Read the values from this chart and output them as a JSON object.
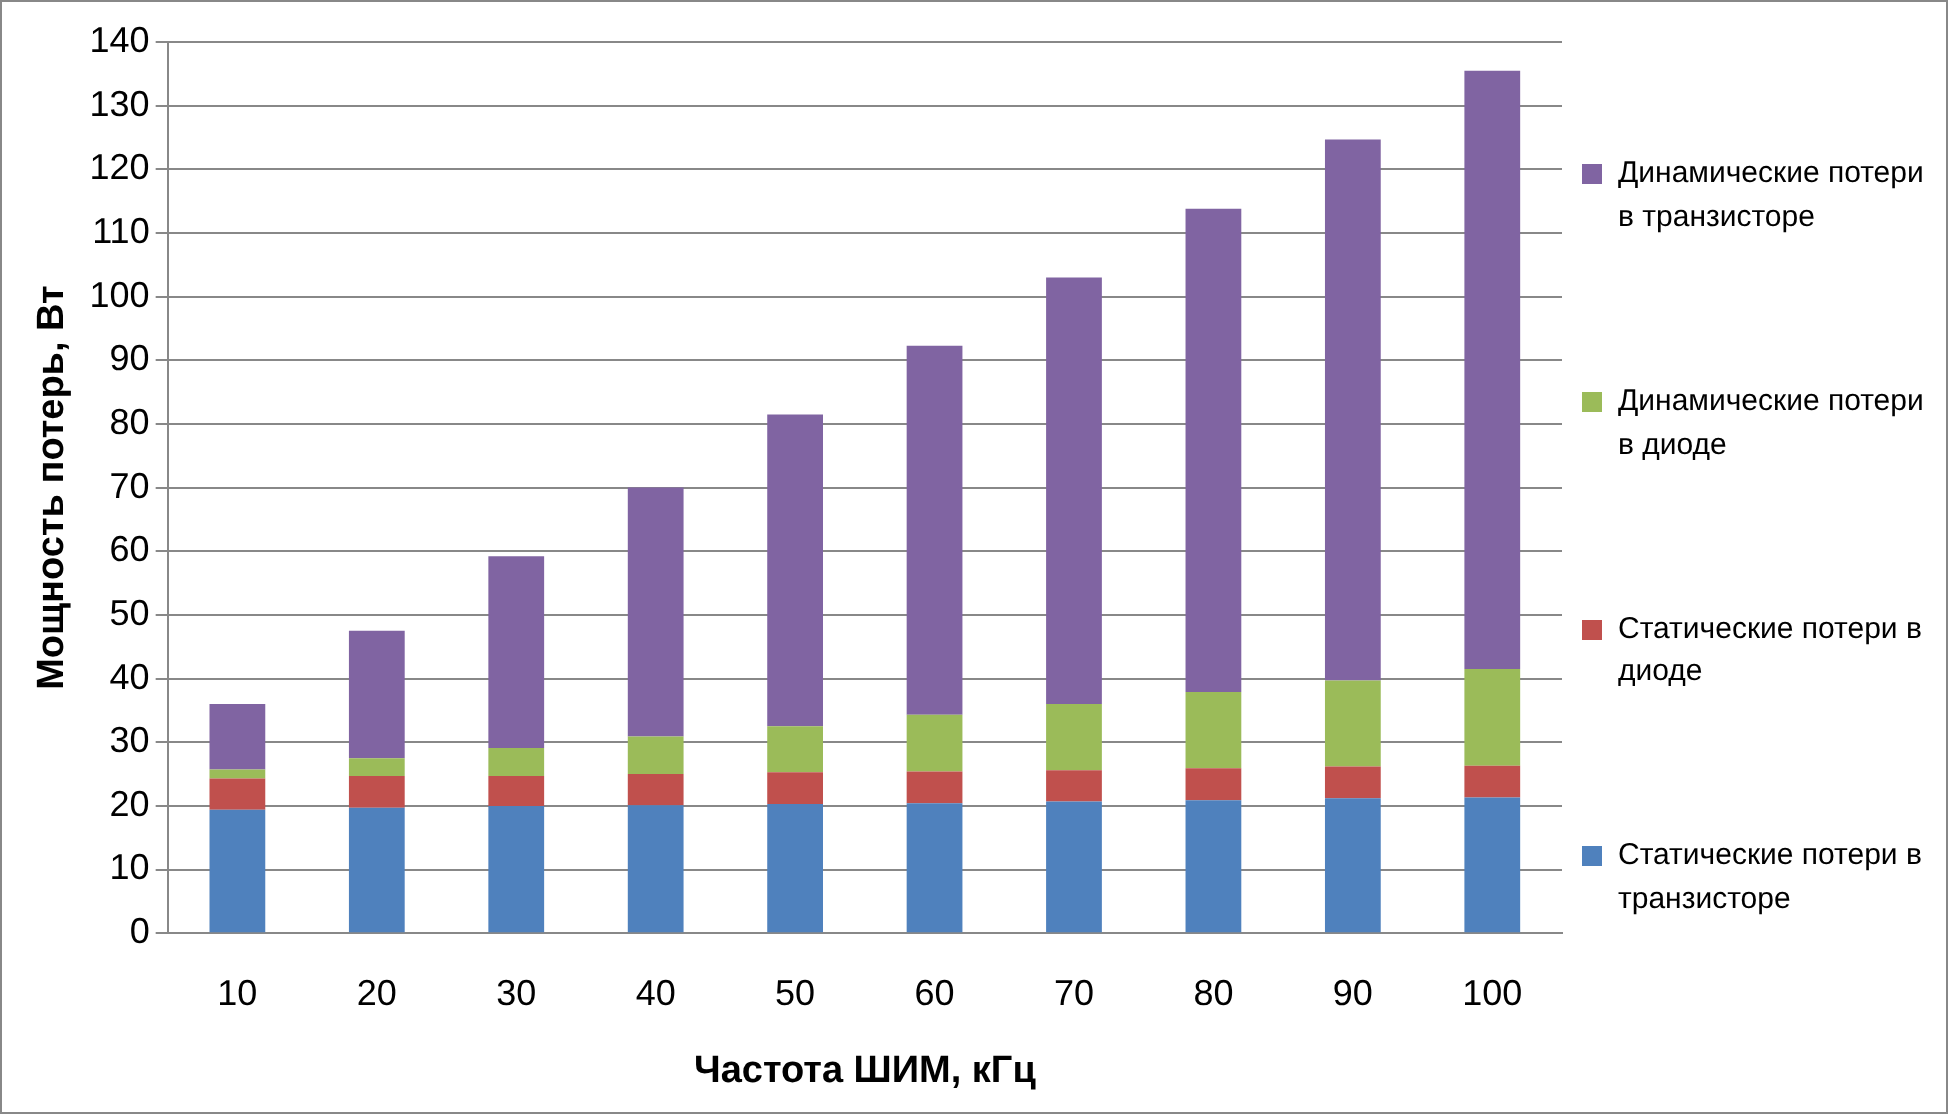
{
  "chart_data": {
    "type": "bar",
    "stacked": true,
    "xlabel": "Частота ШИМ, кГц",
    "ylabel": "Мощность потерь, Вт",
    "categories": [
      "10",
      "20",
      "30",
      "40",
      "50",
      "60",
      "70",
      "80",
      "90",
      "100"
    ],
    "ylim": [
      0,
      140
    ],
    "yticks": [
      0,
      10,
      20,
      30,
      40,
      50,
      60,
      70,
      80,
      90,
      100,
      110,
      120,
      130,
      140
    ],
    "grid": "y",
    "legend": "right",
    "series": [
      {
        "name": "Статические потери в транзисторе",
        "color": "#4f81bd",
        "values": [
          19.4,
          19.7,
          20,
          20.1,
          20.3,
          20.4,
          20.7,
          20.9,
          21.2,
          21.3
        ]
      },
      {
        "name": "Статические потери в диоде",
        "color": "#c0504d",
        "values": [
          4.9,
          5,
          4.7,
          4.9,
          5,
          5,
          4.9,
          5,
          5,
          5
        ]
      },
      {
        "name": "Динамические потери в диоде",
        "color": "#9bbb59",
        "values": [
          1.4,
          2.8,
          4.4,
          5.9,
          7.2,
          8.9,
          10.4,
          12,
          13.5,
          15.2
        ]
      },
      {
        "name": "Динамические потери в транзисторе",
        "color": "#8064a2",
        "values": [
          10.3,
          20,
          30.1,
          39.1,
          49,
          58,
          67,
          75.9,
          85,
          94
        ]
      }
    ]
  }
}
